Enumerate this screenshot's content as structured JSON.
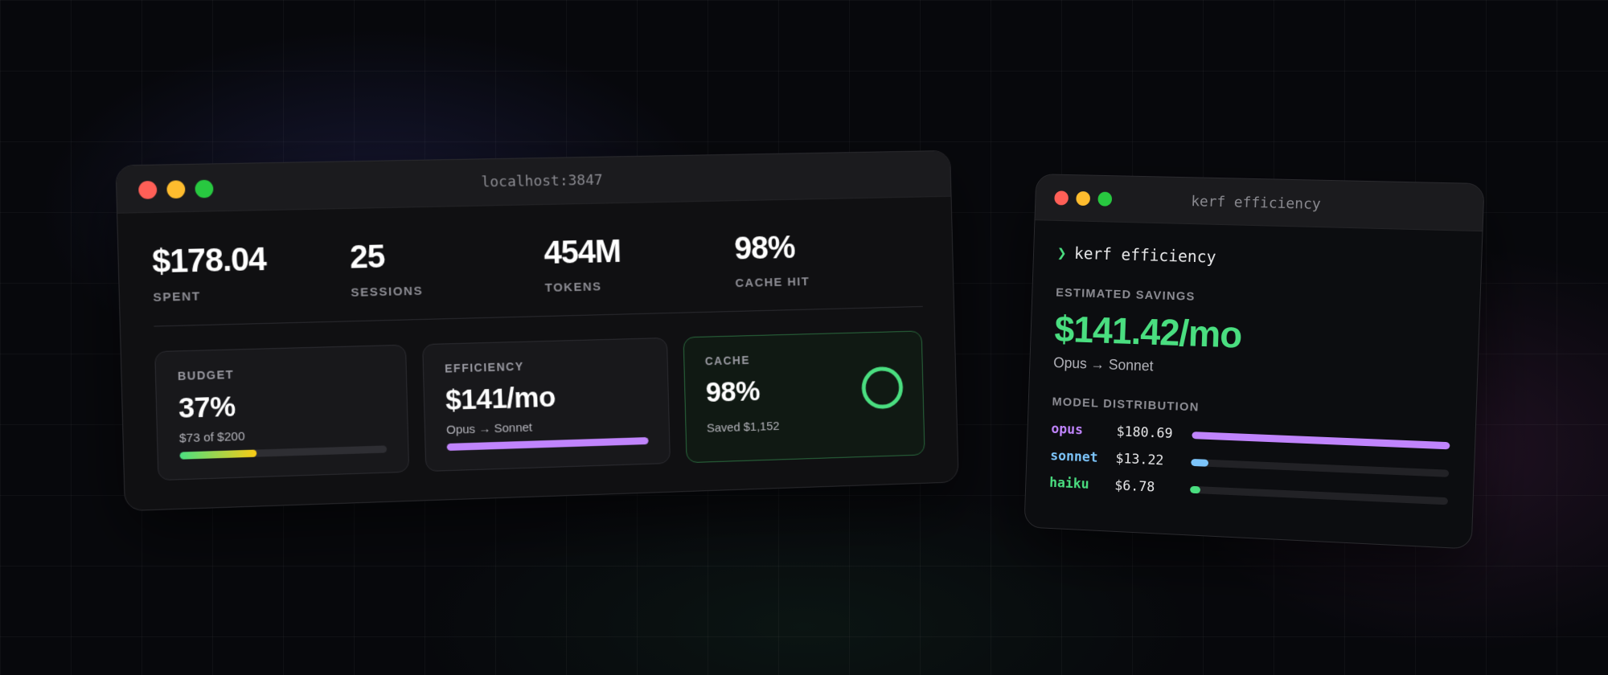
{
  "browser": {
    "url": "localhost:3847",
    "stats": [
      {
        "value": "$178.04",
        "label": "SPENT"
      },
      {
        "value": "25",
        "label": "SESSIONS"
      },
      {
        "value": "454M",
        "label": "TOKENS"
      },
      {
        "value": "98%",
        "label": "CACHE HIT"
      }
    ],
    "cards": {
      "budget": {
        "label": "BUDGET",
        "value": "37%",
        "sub": "$73 of $200",
        "progress": 0.37
      },
      "efficiency": {
        "label": "EFFICIENCY",
        "value": "$141/mo",
        "sub": "Opus → Sonnet",
        "progress": 1.0
      },
      "cache": {
        "label": "CACHE",
        "value": "98%",
        "sub": "Saved $1,152",
        "ring": 0.98
      }
    }
  },
  "terminal": {
    "title": "kerf efficiency",
    "prompt_symbol": "❯",
    "command": "kerf efficiency",
    "savings_label": "ESTIMATED SAVINGS",
    "savings_value": "$141.42/mo",
    "savings_sub": "Opus → Sonnet",
    "distribution_label": "MODEL DISTRIBUTION",
    "models": [
      {
        "name": "opus",
        "cost": "$180.69",
        "share": 1.0,
        "color": "#c084fc"
      },
      {
        "name": "sonnet",
        "cost": "$13.22",
        "share": 0.07,
        "color": "#7cc4fa"
      },
      {
        "name": "haiku",
        "cost": "$6.78",
        "share": 0.04,
        "color": "#4ade80"
      }
    ]
  },
  "colors": {
    "accent_green": "#4ade80",
    "accent_purple": "#c084fc",
    "accent_blue": "#7cc4fa"
  }
}
